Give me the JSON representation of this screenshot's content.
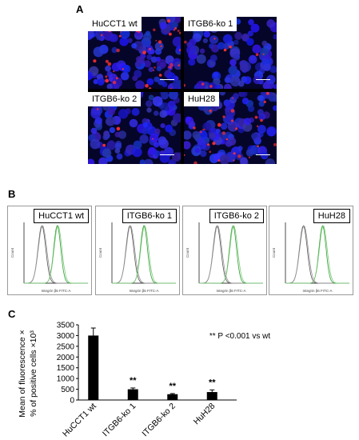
{
  "panels": {
    "a": "A",
    "b": "B",
    "c": "C"
  },
  "micrographs": [
    {
      "label": "HuCCT1 wt"
    },
    {
      "label": "ITGB6-ko 1"
    },
    {
      "label": "ITGB6-ko 2"
    },
    {
      "label": "HuH28"
    }
  ],
  "flow_panels": [
    {
      "label": "HuCCT1 wt",
      "xlabel": "Integrin β6 FITC-A",
      "ylabel": "Count"
    },
    {
      "label": "ITGB6-ko 1",
      "xlabel": "Integrin β6 FITC-A",
      "ylabel": "Count"
    },
    {
      "label": "ITGB6-ko 2",
      "xlabel": "Integrin β6 FITC-A",
      "ylabel": "Count"
    },
    {
      "label": "HuH28",
      "xlabel": "Integrin β6 FITC-A",
      "ylabel": "Count"
    }
  ],
  "colors": {
    "nuclei": "#2a2aff",
    "integrin_stain": "#ff3030",
    "isotype": "#555555",
    "antibody": "#2ca02c",
    "bar": "#000000"
  },
  "chart_data": {
    "type": "bar",
    "categories": [
      "HuCCT1 wt",
      "ITGB6-ko 1",
      "ITGB6-ko 2",
      "HuH28"
    ],
    "values": [
      3000,
      500,
      270,
      370
    ],
    "errors": [
      350,
      60,
      30,
      100
    ],
    "ylabel_line1": "Mean of fluorescence ×",
    "ylabel_line2": "% of positive cells ×10³",
    "yticks": [
      "0",
      "500",
      "1000",
      "1500",
      "2000",
      "2500",
      "3000",
      "3500"
    ],
    "ylim": [
      0,
      3500
    ],
    "significance": [
      "",
      "**",
      "**",
      "**"
    ],
    "annotation": "** P <0.001 vs wt"
  }
}
